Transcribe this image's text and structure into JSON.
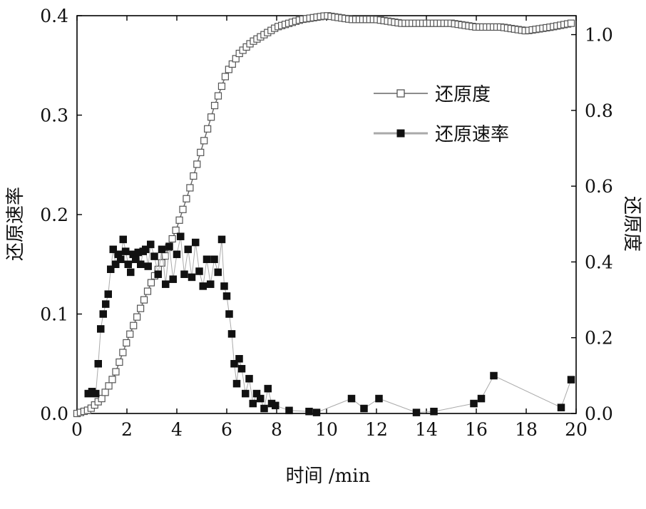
{
  "chart_data": {
    "type": "scatter",
    "xlabel": "时间 /min",
    "ylabel_left": "还原速率",
    "ylabel_right": "还原度",
    "xlim": [
      0,
      20
    ],
    "ylim_left": [
      0,
      0.4
    ],
    "ylim_right": [
      0,
      1.05
    ],
    "x_ticks": [
      "0",
      "2",
      "4",
      "6",
      "8",
      "10",
      "12",
      "14",
      "16",
      "18",
      "20"
    ],
    "y_left_ticks": [
      "0.0",
      "0.1",
      "0.2",
      "0.3",
      "0.4"
    ],
    "y_right_ticks": [
      "0.0",
      "0.2",
      "0.4",
      "0.6",
      "0.8",
      "1.0"
    ],
    "grid": false,
    "legend_position": "upper-right",
    "series": [
      {
        "name": "还原度",
        "axis": "right",
        "marker": "open-square",
        "line_color": "#666666",
        "x": [
          0.0,
          0.5,
          1.0,
          1.5,
          2.0,
          2.5,
          3.0,
          3.5,
          4.0,
          4.5,
          5.0,
          5.5,
          6.0,
          6.5,
          7.0,
          7.5,
          8.0,
          8.5,
          9.0,
          10.0,
          11.0,
          12.0,
          13.0,
          14.0,
          15.0,
          16.0,
          17.0,
          18.0,
          19.0,
          19.8
        ],
        "y": [
          0.0,
          0.01,
          0.04,
          0.1,
          0.19,
          0.27,
          0.35,
          0.41,
          0.49,
          0.59,
          0.7,
          0.81,
          0.9,
          0.95,
          0.98,
          1.0,
          1.02,
          1.03,
          1.04,
          1.05,
          1.04,
          1.04,
          1.03,
          1.03,
          1.03,
          1.02,
          1.02,
          1.01,
          1.02,
          1.03
        ]
      },
      {
        "name": "还原速率",
        "axis": "left",
        "marker": "filled-square",
        "line_color": "#aaaaaa",
        "x": [
          0.45,
          0.6,
          0.75,
          0.85,
          0.95,
          1.05,
          1.15,
          1.25,
          1.35,
          1.45,
          1.55,
          1.65,
          1.75,
          1.85,
          1.95,
          2.05,
          2.15,
          2.25,
          2.35,
          2.45,
          2.55,
          2.65,
          2.75,
          2.85,
          2.95,
          3.1,
          3.25,
          3.4,
          3.55,
          3.7,
          3.85,
          4.0,
          4.15,
          4.3,
          4.45,
          4.6,
          4.75,
          4.9,
          5.05,
          5.2,
          5.35,
          5.5,
          5.65,
          5.8,
          5.9,
          6.0,
          6.1,
          6.2,
          6.3,
          6.4,
          6.5,
          6.6,
          6.75,
          6.9,
          7.05,
          7.2,
          7.35,
          7.5,
          7.65,
          7.8,
          7.95,
          8.5,
          9.3,
          9.6,
          11.0,
          11.5,
          12.1,
          13.6,
          14.3,
          15.9,
          16.2,
          16.7,
          19.4,
          19.8
        ],
        "y": [
          0.02,
          0.022,
          0.02,
          0.05,
          0.085,
          0.1,
          0.11,
          0.12,
          0.145,
          0.165,
          0.15,
          0.16,
          0.155,
          0.175,
          0.163,
          0.15,
          0.142,
          0.16,
          0.155,
          0.162,
          0.15,
          0.163,
          0.165,
          0.148,
          0.17,
          0.158,
          0.14,
          0.165,
          0.13,
          0.168,
          0.135,
          0.16,
          0.178,
          0.14,
          0.165,
          0.137,
          0.172,
          0.143,
          0.128,
          0.155,
          0.13,
          0.155,
          0.142,
          0.175,
          0.128,
          0.118,
          0.1,
          0.08,
          0.05,
          0.03,
          0.055,
          0.045,
          0.02,
          0.035,
          0.01,
          0.02,
          0.015,
          0.005,
          0.025,
          0.01,
          0.008,
          0.003,
          0.002,
          0.001,
          0.015,
          0.005,
          0.015,
          0.001,
          0.002,
          0.01,
          0.015,
          0.038,
          0.006,
          0.034
        ]
      }
    ]
  }
}
